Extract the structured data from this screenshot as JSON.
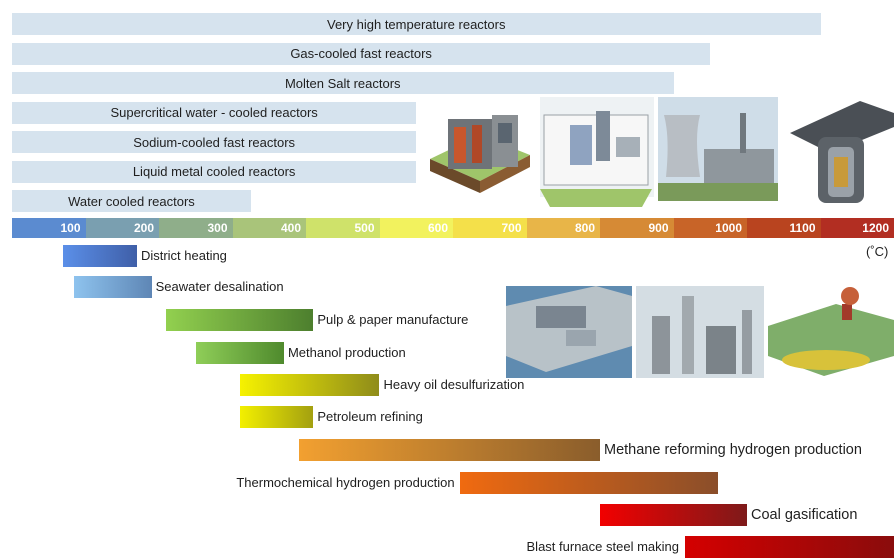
{
  "chart_data": {
    "type": "bar",
    "axis": {
      "unit": "(˚C)",
      "ticks": [
        100,
        200,
        300,
        400,
        500,
        600,
        700,
        800,
        900,
        1000,
        1100,
        1200
      ],
      "colors": [
        "#5b8bd0",
        "#7a9fb0",
        "#8fae8a",
        "#a9c47a",
        "#cfe26a",
        "#f2f25e",
        "#f4e04a",
        "#e8b548",
        "#d68a35",
        "#c86428",
        "#b9441f",
        "#b22e22"
      ]
    },
    "reactors": [
      {
        "name": "Very high temperature reactors",
        "max": 1100
      },
      {
        "name": "Gas-cooled fast reactors",
        "max": 950
      },
      {
        "name": "Molten Salt reactors",
        "max": 900
      },
      {
        "name": "Supercritical water - cooled reactors",
        "max": 550
      },
      {
        "name": "Sodium-cooled fast reactors",
        "max": 550
      },
      {
        "name": "Liquid metal cooled reactors",
        "max": 550
      },
      {
        "name": "Water cooled reactors",
        "max": 325
      }
    ],
    "applications": [
      {
        "name": "District heating",
        "min": 70,
        "max": 170,
        "colors": [
          "#5b8fe8",
          "#3f5fa8"
        ]
      },
      {
        "name": "Seawater desalination",
        "min": 85,
        "max": 190,
        "colors": [
          "#8ec3ee",
          "#5e86b5"
        ]
      },
      {
        "name": "Pulp & paper manufacture",
        "min": 210,
        "max": 410,
        "colors": [
          "#92d04f",
          "#4d7f2e"
        ]
      },
      {
        "name": "Methanol production",
        "min": 250,
        "max": 370,
        "colors": [
          "#8fce58",
          "#4f8a2d"
        ]
      },
      {
        "name": "Heavy oil desulfurization",
        "min": 310,
        "max": 500,
        "colors": [
          "#f6f200",
          "#8f8c1a"
        ]
      },
      {
        "name": "Petroleum refining",
        "min": 310,
        "max": 410,
        "colors": [
          "#f3f000",
          "#a3a010"
        ]
      },
      {
        "name": "Methane reforming hydrogen production",
        "min": 390,
        "max": 800,
        "colors": [
          "#f2a030",
          "#8a5d2c"
        ]
      },
      {
        "name": "Thermochemical hydrogen production",
        "min": 610,
        "max": 960,
        "colors": [
          "#f06a10",
          "#8a4e2a"
        ]
      },
      {
        "name": "Coal gasification",
        "min": 800,
        "max": 1000,
        "colors": [
          "#f20000",
          "#7e1a1a"
        ]
      },
      {
        "name": "Blast furnace steel making",
        "min": 915,
        "max": 1220,
        "colors": [
          "#d40000",
          "#8a0c0c"
        ]
      }
    ]
  }
}
